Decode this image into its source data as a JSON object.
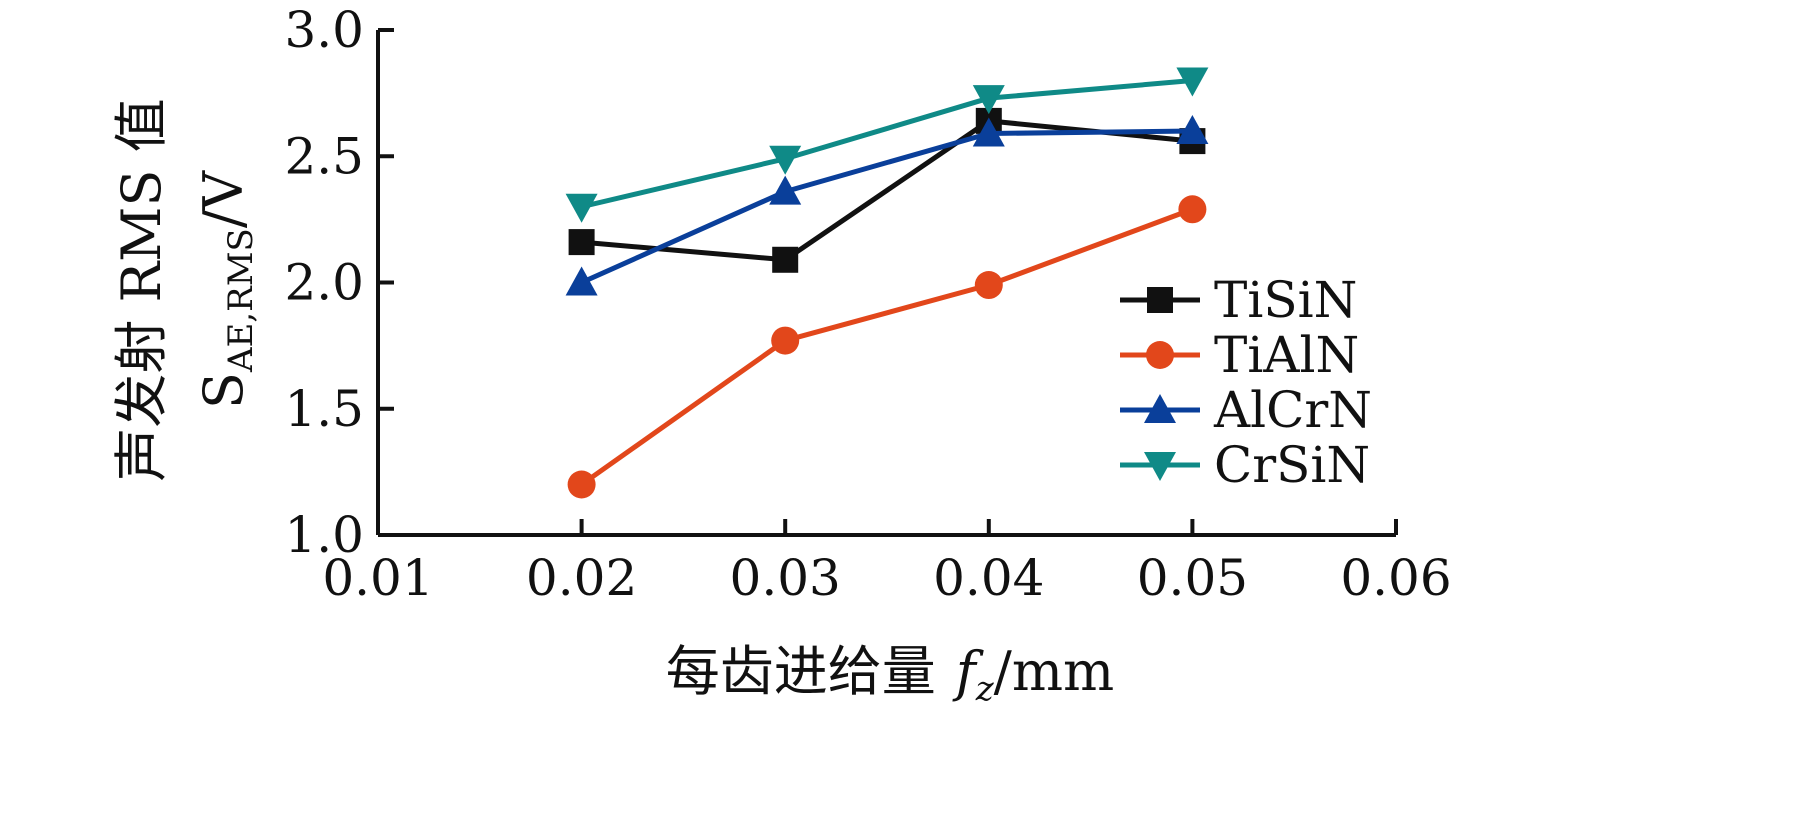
{
  "chart_data": {
    "type": "line",
    "x": [
      0.02,
      0.03,
      0.04,
      0.05
    ],
    "xlim": [
      0.01,
      0.06
    ],
    "ylim": [
      1.0,
      3.0
    ],
    "xticks": [
      0.01,
      0.02,
      0.03,
      0.04,
      0.05,
      0.06
    ],
    "yticks": [
      1.0,
      1.5,
      2.0,
      2.5,
      3.0
    ],
    "xtick_labels": [
      "0.01",
      "0.02",
      "0.03",
      "0.04",
      "0.05",
      "0.06"
    ],
    "ytick_labels": [
      "1.0",
      "1.5",
      "2.0",
      "2.5",
      "3.0"
    ],
    "xlabel": "每齿进给量",
    "xlabel_symbol": "f",
    "xlabel_subscript": "z",
    "xlabel_unit": "/mm",
    "ylabel_line1": "声发射 RMS 值",
    "ylabel_symbol": "S",
    "ylabel_subscript": "AE,RMS",
    "ylabel_unit": "/V",
    "grid": false,
    "legend_position": "right",
    "series": [
      {
        "name": "TiSiN",
        "values": [
          2.16,
          2.09,
          2.64,
          2.56
        ],
        "color": "#111111",
        "marker": "square"
      },
      {
        "name": "TiAlN",
        "values": [
          1.2,
          1.77,
          1.99,
          2.29
        ],
        "color": "#e2471b",
        "marker": "circle"
      },
      {
        "name": "AlCrN",
        "values": [
          2.0,
          2.36,
          2.59,
          2.6
        ],
        "color": "#0a3f9a",
        "marker": "triangle-up"
      },
      {
        "name": "CrSiN",
        "values": [
          2.3,
          2.49,
          2.73,
          2.8
        ],
        "color": "#0f8a87",
        "marker": "triangle-down"
      }
    ]
  }
}
